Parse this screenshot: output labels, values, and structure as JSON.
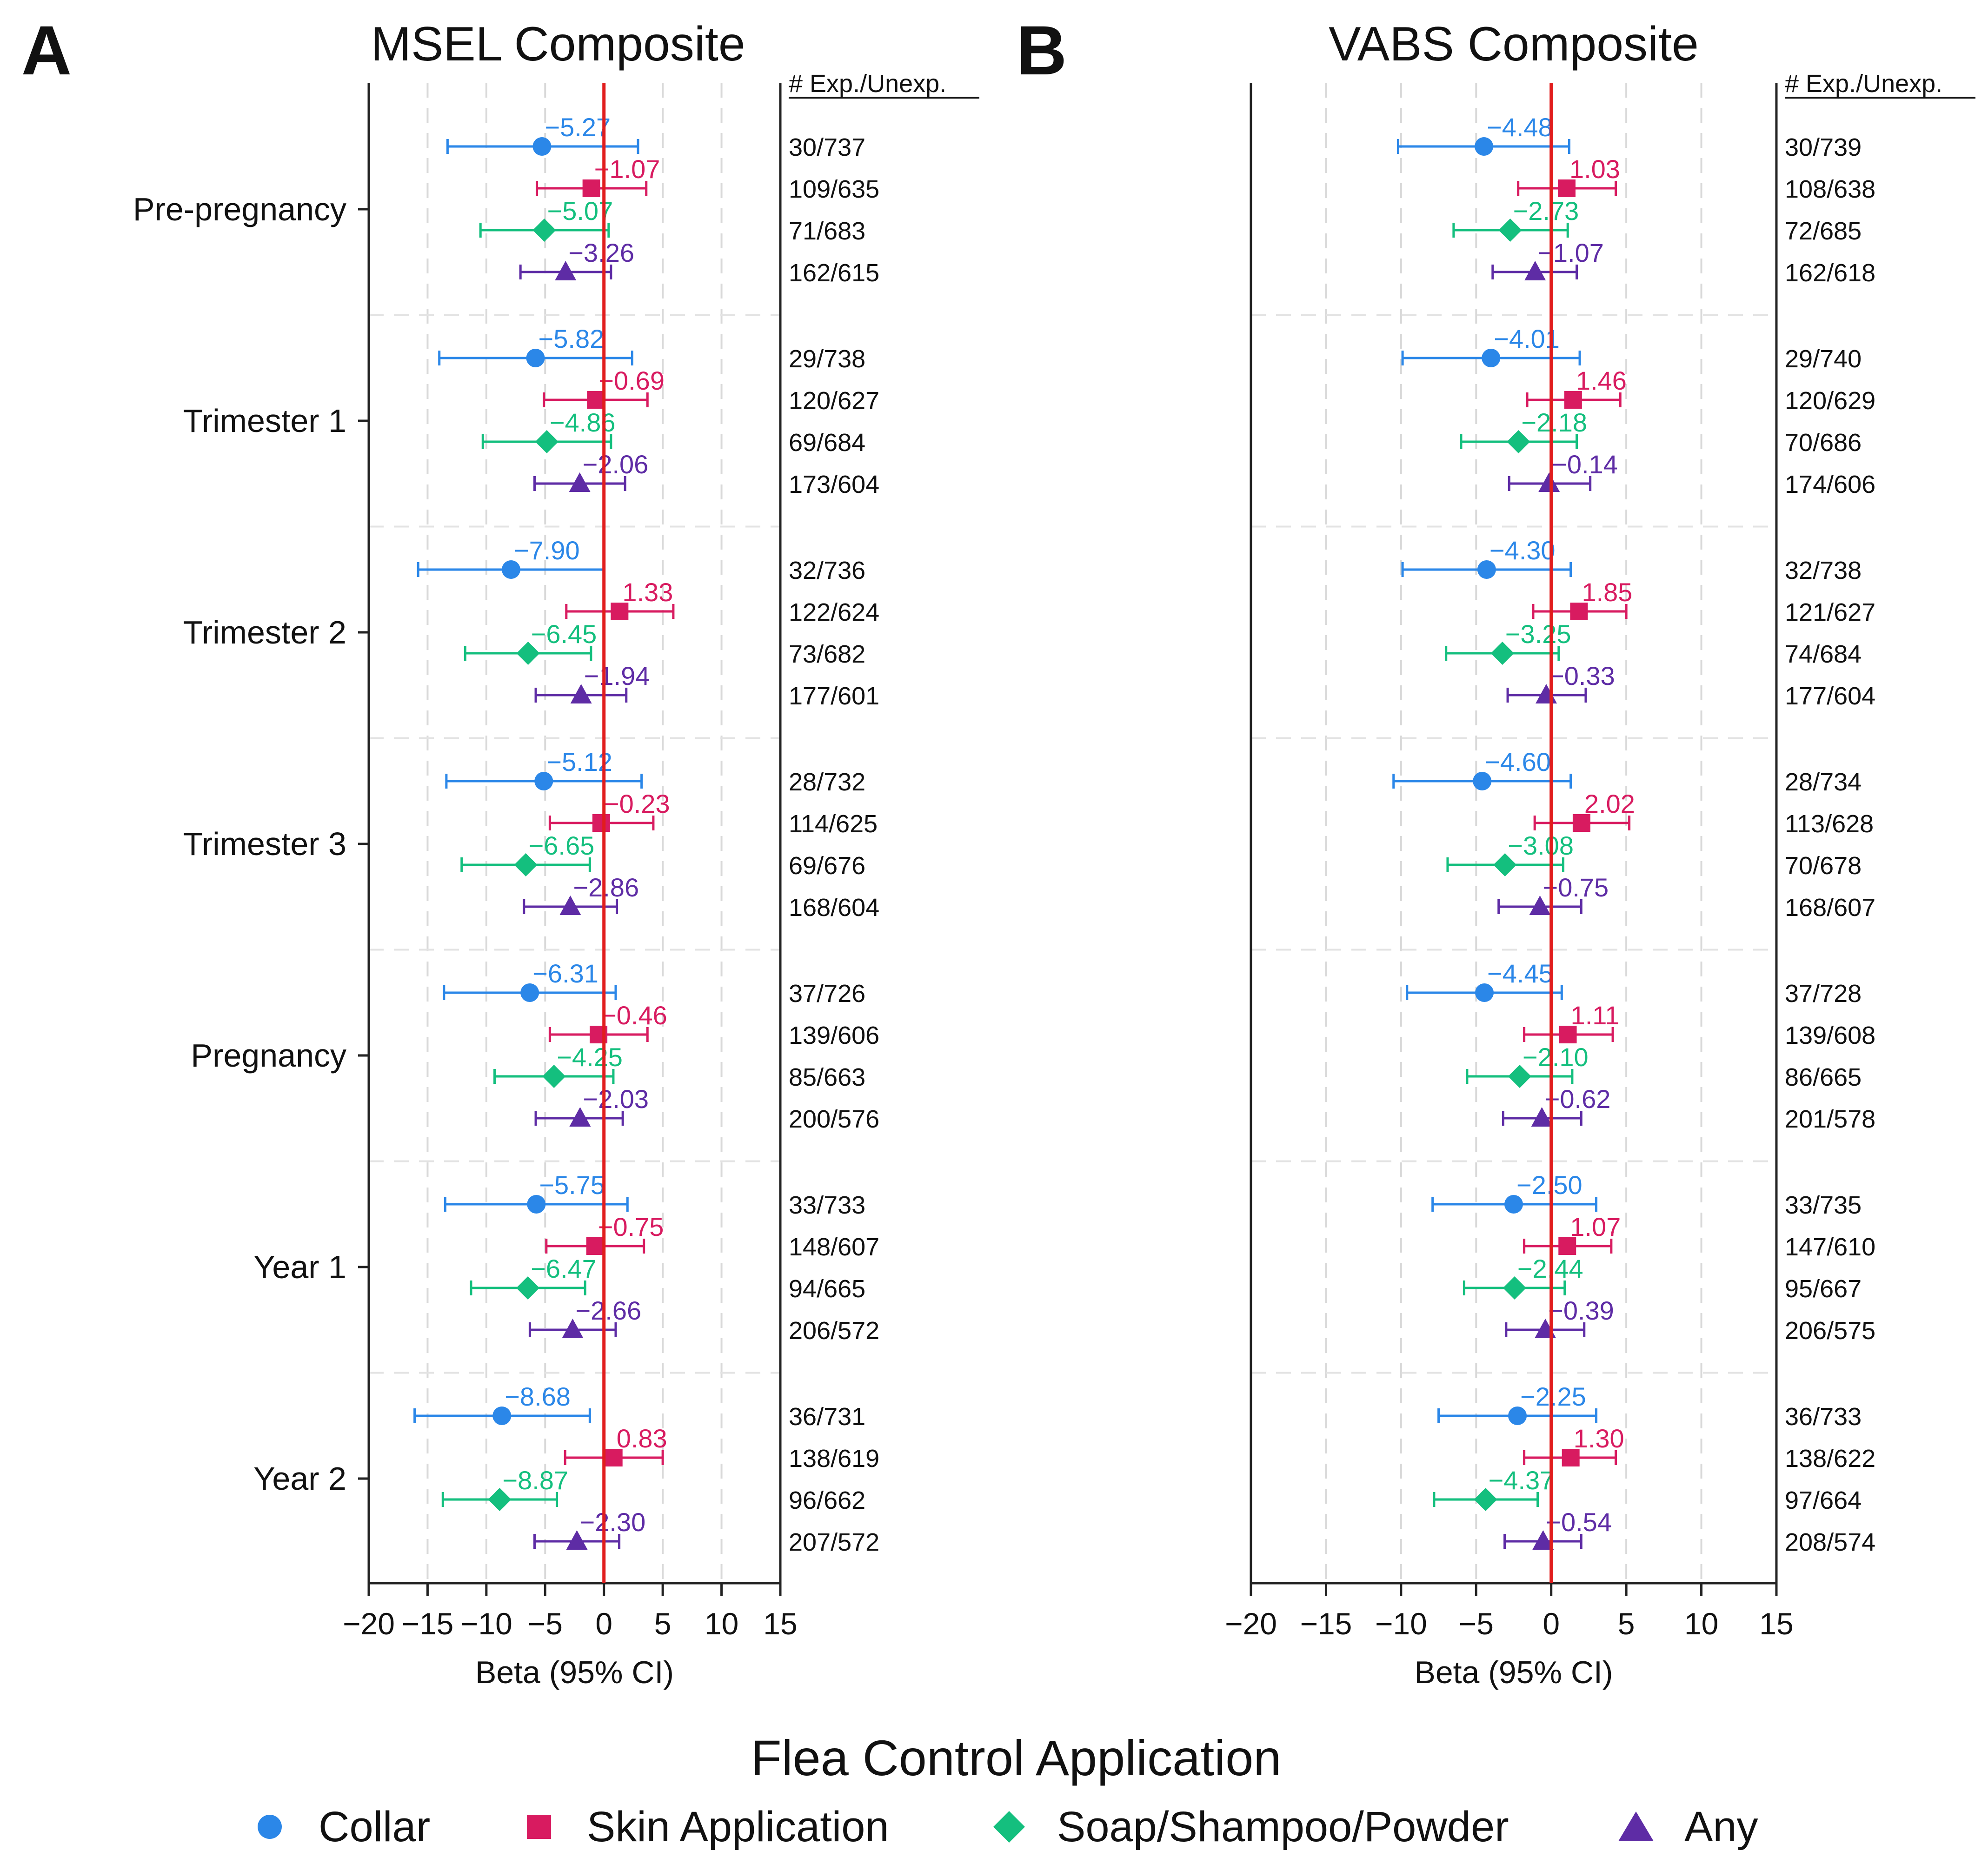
{
  "legend": {
    "title": "Flea Control Application",
    "items": [
      {
        "key": "collar",
        "label": "Collar"
      },
      {
        "key": "skin",
        "label": "Skin Application"
      },
      {
        "key": "soap",
        "label": "Soap/Shampoo/Powder"
      },
      {
        "key": "any",
        "label": "Any"
      }
    ]
  },
  "colors": {
    "collar": "#2b87e8",
    "skin": "#d81b60",
    "soap": "#14bf7e",
    "any": "#5e2ca5",
    "zero_line": "#e11d1d"
  },
  "markers": {
    "collar": "circle",
    "skin": "square",
    "soap": "diamond",
    "any": "triangle"
  },
  "chart_data": [
    {
      "type": "forest",
      "panel_letter": "A",
      "title": "MSEL Composite",
      "xlabel": "Beta (95% CI)",
      "count_header": "# Exp./Unexp.",
      "xlim": [
        -20,
        15
      ],
      "xticks": [
        -20,
        -15,
        -10,
        -5,
        0,
        5,
        10,
        15
      ],
      "xtick_labels": [
        "−20",
        "−15",
        "−10",
        "−5",
        "0",
        "5",
        "10",
        "15"
      ],
      "groups": [
        {
          "label": "Pre-pregnancy",
          "rows": [
            {
              "series": "collar",
              "beta": -5.27,
              "lo": -13.3,
              "hi": 2.9,
              "label": "−5.27",
              "count": "30/737"
            },
            {
              "series": "skin",
              "beta": -1.07,
              "lo": -5.7,
              "hi": 3.6,
              "label": "−1.07",
              "count": "109/635"
            },
            {
              "series": "soap",
              "beta": -5.07,
              "lo": -10.5,
              "hi": 0.4,
              "label": "−5.07",
              "count": "71/683"
            },
            {
              "series": "any",
              "beta": -3.26,
              "lo": -7.1,
              "hi": 0.6,
              "label": "−3.26",
              "count": "162/615"
            }
          ]
        },
        {
          "label": "Trimester 1",
          "rows": [
            {
              "series": "collar",
              "beta": -5.82,
              "lo": -14.0,
              "hi": 2.4,
              "label": "−5.82",
              "count": "29/738"
            },
            {
              "series": "skin",
              "beta": -0.69,
              "lo": -5.1,
              "hi": 3.7,
              "label": "−0.69",
              "count": "120/627"
            },
            {
              "series": "soap",
              "beta": -4.86,
              "lo": -10.3,
              "hi": 0.6,
              "label": "−4.86",
              "count": "69/684"
            },
            {
              "series": "any",
              "beta": -2.06,
              "lo": -5.9,
              "hi": 1.8,
              "label": "−2.06",
              "count": "173/604"
            }
          ]
        },
        {
          "label": "Trimester 2",
          "rows": [
            {
              "series": "collar",
              "beta": -7.9,
              "lo": -15.8,
              "hi": 0.0,
              "label": "−7.90",
              "count": "32/736"
            },
            {
              "series": "skin",
              "beta": 1.33,
              "lo": -3.2,
              "hi": 5.9,
              "label": "1.33",
              "count": "122/624"
            },
            {
              "series": "soap",
              "beta": -6.45,
              "lo": -11.8,
              "hi": -1.1,
              "label": "−6.45",
              "count": "73/682"
            },
            {
              "series": "any",
              "beta": -1.94,
              "lo": -5.8,
              "hi": 1.9,
              "label": "−1.94",
              "count": "177/601"
            }
          ]
        },
        {
          "label": "Trimester 3",
          "rows": [
            {
              "series": "collar",
              "beta": -5.12,
              "lo": -13.4,
              "hi": 3.2,
              "label": "−5.12",
              "count": "28/732"
            },
            {
              "series": "skin",
              "beta": -0.23,
              "lo": -4.6,
              "hi": 4.2,
              "label": "−0.23",
              "count": "114/625"
            },
            {
              "series": "soap",
              "beta": -6.65,
              "lo": -12.1,
              "hi": -1.2,
              "label": "−6.65",
              "count": "69/676"
            },
            {
              "series": "any",
              "beta": -2.86,
              "lo": -6.8,
              "hi": 1.1,
              "label": "−2.86",
              "count": "168/604"
            }
          ]
        },
        {
          "label": "Pregnancy",
          "rows": [
            {
              "series": "collar",
              "beta": -6.31,
              "lo": -13.6,
              "hi": 1.0,
              "label": "−6.31",
              "count": "37/726"
            },
            {
              "series": "skin",
              "beta": -0.46,
              "lo": -4.6,
              "hi": 3.7,
              "label": "−0.46",
              "count": "139/606"
            },
            {
              "series": "soap",
              "beta": -4.25,
              "lo": -9.3,
              "hi": 0.8,
              "label": "−4.25",
              "count": "85/663"
            },
            {
              "series": "any",
              "beta": -2.03,
              "lo": -5.8,
              "hi": 1.6,
              "label": "−2.03",
              "count": "200/576"
            }
          ]
        },
        {
          "label": "Year 1",
          "rows": [
            {
              "series": "collar",
              "beta": -5.75,
              "lo": -13.5,
              "hi": 2.0,
              "label": "−5.75",
              "count": "33/733"
            },
            {
              "series": "skin",
              "beta": -0.75,
              "lo": -4.9,
              "hi": 3.4,
              "label": "−0.75",
              "count": "148/607"
            },
            {
              "series": "soap",
              "beta": -6.47,
              "lo": -11.3,
              "hi": -1.6,
              "label": "−6.47",
              "count": "94/665"
            },
            {
              "series": "any",
              "beta": -2.66,
              "lo": -6.3,
              "hi": 1.0,
              "label": "−2.66",
              "count": "206/572"
            }
          ]
        },
        {
          "label": "Year 2",
          "rows": [
            {
              "series": "collar",
              "beta": -8.68,
              "lo": -16.1,
              "hi": -1.2,
              "label": "−8.68",
              "count": "36/731"
            },
            {
              "series": "skin",
              "beta": 0.83,
              "lo": -3.3,
              "hi": 5.0,
              "label": "0.83",
              "count": "138/619"
            },
            {
              "series": "soap",
              "beta": -8.87,
              "lo": -13.7,
              "hi": -4.0,
              "label": "−8.87",
              "count": "96/662"
            },
            {
              "series": "any",
              "beta": -2.3,
              "lo": -5.9,
              "hi": 1.3,
              "label": "−2.30",
              "count": "207/572"
            }
          ]
        }
      ]
    },
    {
      "type": "forest",
      "panel_letter": "B",
      "title": "VABS Composite",
      "xlabel": "Beta (95% CI)",
      "count_header": "# Exp./Unexp.",
      "xlim": [
        -20,
        15
      ],
      "xticks": [
        -20,
        -15,
        -10,
        -5,
        0,
        5,
        10,
        15
      ],
      "xtick_labels": [
        "−20",
        "−15",
        "−10",
        "−5",
        "0",
        "5",
        "10",
        "15"
      ],
      "groups": [
        {
          "label": "Pre-pregnancy",
          "rows": [
            {
              "series": "collar",
              "beta": -4.48,
              "lo": -10.2,
              "hi": 1.2,
              "label": "−4.48",
              "count": "30/739"
            },
            {
              "series": "skin",
              "beta": 1.03,
              "lo": -2.2,
              "hi": 4.3,
              "label": "1.03",
              "count": "108/638"
            },
            {
              "series": "soap",
              "beta": -2.73,
              "lo": -6.5,
              "hi": 1.1,
              "label": "−2.73",
              "count": "72/685"
            },
            {
              "series": "any",
              "beta": -1.07,
              "lo": -3.9,
              "hi": 1.7,
              "label": "−1.07",
              "count": "162/618"
            }
          ]
        },
        {
          "label": "Trimester 1",
          "rows": [
            {
              "series": "collar",
              "beta": -4.01,
              "lo": -9.9,
              "hi": 1.9,
              "label": "−4.01",
              "count": "29/740"
            },
            {
              "series": "skin",
              "beta": 1.46,
              "lo": -1.6,
              "hi": 4.6,
              "label": "1.46",
              "count": "120/629"
            },
            {
              "series": "soap",
              "beta": -2.18,
              "lo": -6.0,
              "hi": 1.7,
              "label": "−2.18",
              "count": "70/686"
            },
            {
              "series": "any",
              "beta": -0.14,
              "lo": -2.8,
              "hi": 2.6,
              "label": "−0.14",
              "count": "174/606"
            }
          ]
        },
        {
          "label": "Trimester 2",
          "rows": [
            {
              "series": "collar",
              "beta": -4.3,
              "lo": -9.9,
              "hi": 1.3,
              "label": "−4.30",
              "count": "32/738"
            },
            {
              "series": "skin",
              "beta": 1.85,
              "lo": -1.2,
              "hi": 5.0,
              "label": "1.85",
              "count": "121/627"
            },
            {
              "series": "soap",
              "beta": -3.25,
              "lo": -7.0,
              "hi": 0.5,
              "label": "−3.25",
              "count": "74/684"
            },
            {
              "series": "any",
              "beta": -0.33,
              "lo": -2.9,
              "hi": 2.3,
              "label": "−0.33",
              "count": "177/604"
            }
          ]
        },
        {
          "label": "Trimester 3",
          "rows": [
            {
              "series": "collar",
              "beta": -4.6,
              "lo": -10.5,
              "hi": 1.3,
              "label": "−4.60",
              "count": "28/734"
            },
            {
              "series": "skin",
              "beta": 2.02,
              "lo": -1.1,
              "hi": 5.2,
              "label": "2.02",
              "count": "113/628"
            },
            {
              "series": "soap",
              "beta": -3.08,
              "lo": -6.9,
              "hi": 0.8,
              "label": "−3.08",
              "count": "70/678"
            },
            {
              "series": "any",
              "beta": -0.75,
              "lo": -3.5,
              "hi": 2.0,
              "label": "−0.75",
              "count": "168/607"
            }
          ]
        },
        {
          "label": "Pregnancy",
          "rows": [
            {
              "series": "collar",
              "beta": -4.45,
              "lo": -9.6,
              "hi": 0.7,
              "label": "−4.45",
              "count": "37/728"
            },
            {
              "series": "skin",
              "beta": 1.11,
              "lo": -1.8,
              "hi": 4.1,
              "label": "1.11",
              "count": "139/608"
            },
            {
              "series": "soap",
              "beta": -2.1,
              "lo": -5.6,
              "hi": 1.4,
              "label": "−2.10",
              "count": "86/665"
            },
            {
              "series": "any",
              "beta": -0.62,
              "lo": -3.2,
              "hi": 2.0,
              "label": "−0.62",
              "count": "201/578"
            }
          ]
        },
        {
          "label": "Year 1",
          "rows": [
            {
              "series": "collar",
              "beta": -2.5,
              "lo": -7.9,
              "hi": 3.0,
              "label": "−2.50",
              "count": "33/735"
            },
            {
              "series": "skin",
              "beta": 1.07,
              "lo": -1.8,
              "hi": 4.0,
              "label": "1.07",
              "count": "147/610"
            },
            {
              "series": "soap",
              "beta": -2.44,
              "lo": -5.8,
              "hi": 0.9,
              "label": "−2.44",
              "count": "95/667"
            },
            {
              "series": "any",
              "beta": -0.39,
              "lo": -3.0,
              "hi": 2.2,
              "label": "−0.39",
              "count": "206/575"
            }
          ]
        },
        {
          "label": "Year 2",
          "rows": [
            {
              "series": "collar",
              "beta": -2.25,
              "lo": -7.5,
              "hi": 3.0,
              "label": "−2.25",
              "count": "36/733"
            },
            {
              "series": "skin",
              "beta": 1.3,
              "lo": -1.8,
              "hi": 4.3,
              "label": "1.30",
              "count": "138/622"
            },
            {
              "series": "soap",
              "beta": -4.37,
              "lo": -7.8,
              "hi": -0.9,
              "label": "−4.37",
              "count": "97/664"
            },
            {
              "series": "any",
              "beta": -0.54,
              "lo": -3.1,
              "hi": 2.0,
              "label": "−0.54",
              "count": "208/574"
            }
          ]
        }
      ]
    }
  ]
}
